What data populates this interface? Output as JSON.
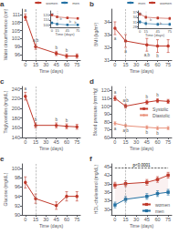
{
  "chart_data": [
    {
      "type": "line",
      "title": "a",
      "xlabel": "Time (days)",
      "ylabel": "Waist circumference (cm)",
      "x": [
        0,
        15,
        45,
        60,
        75
      ],
      "xlim": [
        -5,
        80
      ],
      "xticks": [
        0,
        15,
        30,
        45,
        60,
        75
      ],
      "ylim": [
        94,
        113
      ],
      "yticks": [
        96,
        99,
        102,
        105,
        108,
        111
      ],
      "grid": false,
      "vline": {
        "x": 15,
        "color": "gray"
      },
      "series": [
        {
          "color": "#c0392b",
          "marker": "circle",
          "values": [
            110,
            99,
            96.5,
            95.5,
            95.5
          ],
          "errors": [
            1.2,
            1.0,
            0.8,
            0.8,
            0.8
          ],
          "annotations": {
            "texts": [
              "a",
              "a,b",
              "b",
              "b"
            ],
            "color": "#555555"
          }
        }
      ]
    },
    {
      "type": "line",
      "xlabel": "Time (days)",
      "x": [
        0,
        15,
        45,
        75
      ],
      "xlim": [
        -5,
        80
      ],
      "xticks": [
        0,
        15,
        45,
        75
      ],
      "ylim": [
        95,
        128
      ],
      "yticks": [
        100,
        110,
        120
      ],
      "grid": false,
      "legend": "upper right",
      "vline": {
        "x": 15,
        "color": "gray"
      },
      "series": [
        {
          "name": "women",
          "color": "#c0392b",
          "marker": "square",
          "values": [
            120,
            116,
            114,
            113
          ],
          "errors": 1.5
        },
        {
          "name": "men",
          "color": "#2471a3",
          "marker": "square",
          "values": [
            104,
            101.5,
            100,
            100
          ],
          "errors": 1.5
        }
      ],
      "annotations": {
        "texts": [
          "a",
          "b",
          "b",
          "b"
        ],
        "color": "#777777"
      }
    },
    {
      "type": "line",
      "title": "b",
      "xlabel": "Time (days)",
      "ylabel": "BMI (kg/m²)",
      "x": [
        0,
        15,
        45,
        60,
        75
      ],
      "xlim": [
        -5,
        80
      ],
      "xticks": [
        0,
        15,
        30,
        45,
        60,
        75
      ],
      "ylim": [
        31,
        35
      ],
      "yticks": [
        31,
        32,
        33,
        34
      ],
      "grid": false,
      "vline": {
        "x": 15,
        "color": "gray"
      },
      "series": [
        {
          "color": "#c0392b",
          "marker": "circle",
          "values": [
            33.5,
            32.5,
            32.2,
            32.1,
            32.1
          ],
          "errors": [
            0.5,
            0.5,
            0.5,
            0.5,
            0.5
          ],
          "annotations": {
            "texts": [
              "a",
              "a",
              "a,b",
              "b"
            ],
            "color": "#555555"
          }
        }
      ]
    },
    {
      "type": "line",
      "xlabel": "Time (days)",
      "x": [
        0,
        15,
        45,
        75
      ],
      "xlim": [
        -5,
        80
      ],
      "xticks": [
        0,
        15,
        45,
        75
      ],
      "ylim": [
        27,
        38
      ],
      "yticks": [
        28,
        31,
        34,
        37
      ],
      "grid": false,
      "legend": "upper right",
      "vline": {
        "x": 15,
        "color": "gray"
      },
      "series": [
        {
          "name": "men",
          "color": "#2471a3",
          "marker": "square",
          "values": [
            31,
            30,
            29.5,
            29.5
          ],
          "errors": 0.8
        },
        {
          "name": "women",
          "color": "#c0392b",
          "marker": "square",
          "values": [
            36,
            34,
            33.5,
            33.2
          ],
          "errors": 0.8
        }
      ],
      "annotations": {
        "texts": [
          "a",
          "b",
          "b"
        ],
        "color": "#777777"
      }
    },
    {
      "type": "line",
      "title": "c",
      "xlabel": "Time (days)",
      "ylabel": "Triglycerides (mg/dL)",
      "x": [
        0,
        15,
        45,
        60,
        75
      ],
      "xlim": [
        -5,
        80
      ],
      "xticks": [
        0,
        15,
        30,
        45,
        60,
        75
      ],
      "ylim": [
        140,
        245
      ],
      "yticks": [
        140,
        160,
        180,
        200,
        220,
        240
      ],
      "grid": false,
      "vline": {
        "x": 15,
        "color": "gray"
      },
      "series": [
        {
          "color": "#c0392b",
          "marker": "circle",
          "values": [
            225,
            165,
            165,
            163,
            162
          ],
          "errors": [
            8,
            5,
            5,
            5,
            5
          ],
          "annotations": {
            "texts": [
              "a",
              "b",
              "b",
              "b"
            ],
            "color": "#555555"
          }
        }
      ]
    },
    {
      "type": "line",
      "title": "d",
      "xlabel": "Time (days)",
      "ylabel": "Blood pressure (mmHg)",
      "x": [
        0,
        15,
        45,
        60,
        75
      ],
      "xlim": [
        -5,
        80
      ],
      "xticks": [
        0,
        15,
        30,
        45,
        60,
        75
      ],
      "ylim": [
        60,
        125
      ],
      "yticks": [
        60,
        70,
        80,
        90,
        100,
        110,
        120
      ],
      "grid": false,
      "legend": "center right",
      "vline": {
        "x": 15,
        "color": "gray"
      },
      "series": [
        {
          "name": "Systolic",
          "color": "#c0392b",
          "marker": "circle",
          "values": [
            110,
            100,
            105,
            107,
            106
          ],
          "errors": [
            3,
            2.5,
            2.5,
            2.5,
            2.5
          ],
          "annotations": {
            "texts": [
              "a",
              "a,b",
              "b",
              "b"
            ],
            "color": "#555555"
          }
        },
        {
          "name": "Diastolic",
          "color": "#e8907a",
          "marker": "diamond",
          "values": [
            78,
            75,
            73,
            72,
            72
          ],
          "errors": [
            2,
            2,
            2,
            2,
            2
          ],
          "annotations": {
            "texts": [
              "a",
              "a,b",
              "b",
              "b"
            ],
            "color": "#555555"
          }
        }
      ]
    },
    {
      "type": "line",
      "title": "e",
      "xlabel": "Time (days)",
      "ylabel": "Glucose (mg/dL)",
      "x": [
        0,
        15,
        45,
        60,
        75
      ],
      "xlim": [
        -5,
        80
      ],
      "xticks": [
        0,
        15,
        30,
        45,
        60,
        75
      ],
      "ylim": [
        90,
        101
      ],
      "yticks": [
        90,
        92,
        94,
        96,
        98,
        100
      ],
      "grid": false,
      "vline": {
        "x": 15,
        "color": "gray"
      },
      "series": [
        {
          "color": "#c0392b",
          "marker": "circle",
          "values": [
            97,
            93.5,
            92,
            94,
            94
          ],
          "errors": [
            1.2,
            1.0,
            0.8,
            1.0,
            1.0
          ]
        }
      ]
    },
    {
      "type": "line",
      "title": "f",
      "xlabel": "Time (days)",
      "ylabel": "HDL-cholesterol (mg/dL)",
      "x": [
        0,
        15,
        45,
        60,
        75
      ],
      "xlim": [
        -5,
        80
      ],
      "xticks": [
        0,
        15,
        30,
        45,
        60,
        75
      ],
      "ylim": [
        28,
        46
      ],
      "yticks": [
        30,
        33,
        36,
        39,
        42,
        45
      ],
      "grid": false,
      "legend": "lower right",
      "vline": {
        "x": 15,
        "color": "gray"
      },
      "series": [
        {
          "name": "women",
          "color": "#c0392b",
          "marker": "square",
          "values": [
            38.5,
            39.0,
            39.5,
            40.5,
            42.0
          ],
          "errors": [
            1.0,
            1.0,
            1.0,
            1.0,
            1.0
          ]
        },
        {
          "name": "men",
          "color": "#2471a3",
          "marker": "square",
          "values": [
            31.5,
            33.5,
            34.5,
            35.5,
            36.0
          ],
          "errors": [
            1.0,
            1.0,
            1.0,
            1.0,
            1.0
          ]
        }
      ],
      "fill_between": {
        "series": [
          "women",
          "men"
        ],
        "color": "#f0d0d0"
      },
      "bracket": {
        "x": [
          0,
          75
        ],
        "y": 44.5,
        "label": "p<0.0001",
        "color": "black"
      }
    }
  ]
}
